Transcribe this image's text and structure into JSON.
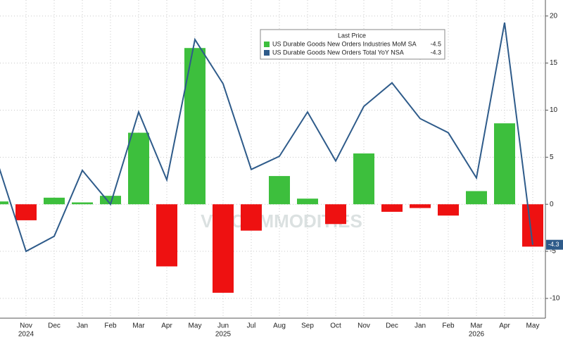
{
  "chart_data": {
    "type": "bar_line",
    "categories": [
      null,
      "Nov",
      "Dec",
      "Jan",
      "Feb",
      "Mar",
      "Apr",
      "May",
      "Jun",
      "Jul",
      "Aug",
      "Sep",
      "Oct",
      "Nov",
      "Dec",
      "Jan",
      "Feb",
      "Mar",
      "Apr",
      "May"
    ],
    "year_labels": [
      null,
      "2024",
      null,
      null,
      null,
      null,
      null,
      null,
      "2025",
      null,
      null,
      null,
      null,
      null,
      null,
      null,
      null,
      "2026",
      null,
      null
    ],
    "legend_title": "Last Price",
    "watermark": "VN COMMODITIES",
    "series": [
      {
        "name": "US Durable Goods New Orders Industries MoM SA",
        "type": "bar",
        "color": "#3dbf3d",
        "negative_color": "#ee1111",
        "values": [
          0.3,
          -1.7,
          0.7,
          0.2,
          0.9,
          7.6,
          -6.6,
          16.6,
          -9.4,
          -2.8,
          3.0,
          0.6,
          -2.1,
          5.4,
          -0.8,
          -0.4,
          -1.2,
          1.4,
          8.6,
          -4.5
        ]
      },
      {
        "name": "US Durable Goods New Orders Total YoY NSA",
        "type": "line",
        "color": "#2e5b8a",
        "values": [
          4.3,
          -5.0,
          -3.4,
          3.6,
          0.0,
          9.8,
          2.6,
          17.5,
          12.8,
          3.7,
          5.1,
          9.8,
          4.6,
          10.4,
          12.9,
          9.1,
          7.6,
          2.8,
          19.3,
          -4.3
        ]
      }
    ],
    "ylim": [
      -12.1,
      21.7
    ],
    "yticks": [
      -10,
      -5,
      0,
      5,
      10,
      15,
      20
    ],
    "y_axis_side": "right",
    "grid": true
  }
}
